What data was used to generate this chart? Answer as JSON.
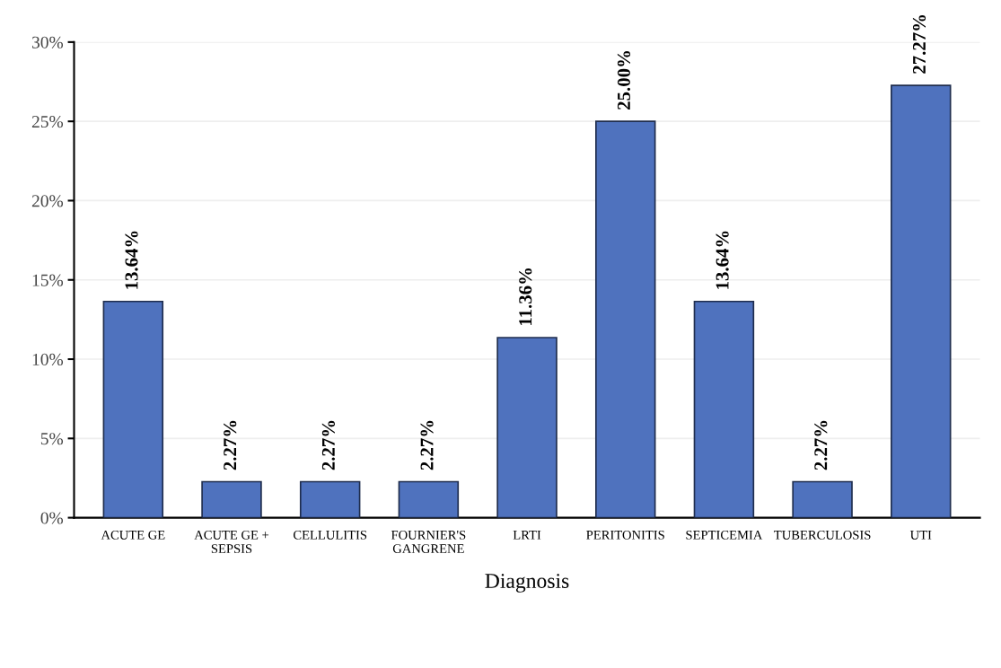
{
  "chart_data": {
    "type": "bar",
    "xlabel": "Diagnosis",
    "categories": [
      "ACUTE GE",
      "ACUTE GE +\nSEPSIS",
      "CELLULITIS",
      "FOURNIER'S\nGANGRENE",
      "LRTI",
      "PERITONITIS",
      "SEPTICEMIA",
      "TUBERCULOSIS",
      "UTI"
    ],
    "values": [
      13.64,
      2.27,
      2.27,
      2.27,
      11.36,
      25.0,
      13.64,
      2.27,
      27.27
    ],
    "value_labels": [
      "13.64%",
      "2.27%",
      "2.27%",
      "2.27%",
      "11.36%",
      "25.00%",
      "13.64%",
      "2.27%",
      "27.27%"
    ],
    "color": "#4f72be",
    "ylim": [
      0,
      30
    ],
    "yticks": [
      {
        "value": 0,
        "label": "0%"
      },
      {
        "value": 5,
        "label": "5%"
      },
      {
        "value": 10,
        "label": "10%"
      },
      {
        "value": 15,
        "label": "15%"
      },
      {
        "value": 20,
        "label": "20%"
      },
      {
        "value": 25,
        "label": "25%"
      },
      {
        "value": 30,
        "label": "30%"
      }
    ],
    "grid": "y"
  }
}
